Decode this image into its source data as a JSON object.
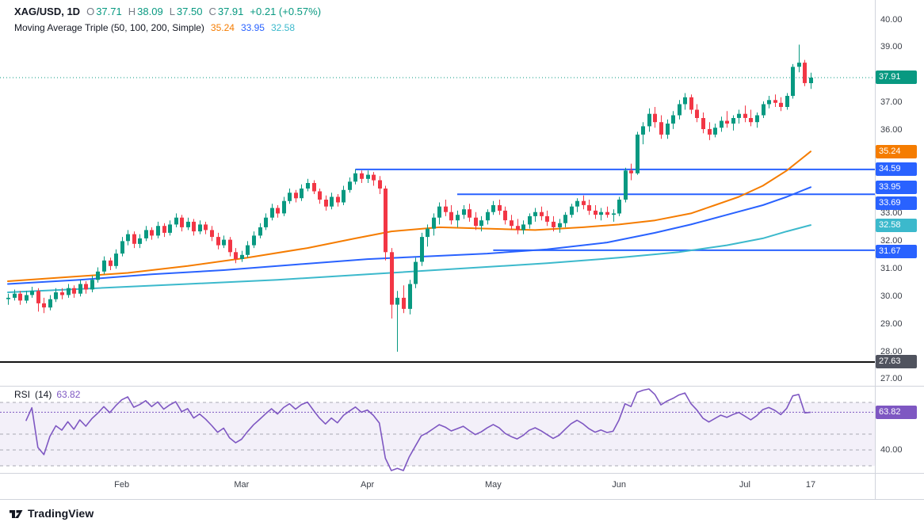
{
  "legend": {
    "symbol": "XAG/USD, 1D",
    "ohlc": {
      "o_label": "O",
      "o": "37.71",
      "h_label": "H",
      "h": "38.09",
      "l_label": "L",
      "l": "37.50",
      "c_label": "C",
      "c": "37.91",
      "change": "+0.21 (+0.57%)"
    },
    "ma": {
      "label": "Moving Average Triple (50, 100, 200, Simple)",
      "ma50": "35.24",
      "ma100": "33.95",
      "ma200": "32.58"
    }
  },
  "rsi_pane": {
    "title": "RSI",
    "params": "(14)",
    "value": "63.82"
  },
  "footer": {
    "brand": "TradingView"
  },
  "colors": {
    "up": "#089981",
    "down": "#F23645",
    "ma50": "#F57C00",
    "ma100": "#2962FF",
    "ma200": "#3CB9CC",
    "level": "#2962FF",
    "dark": "#50535E",
    "black_line": "#131313",
    "rsi": "#7E57C2",
    "axis_text": "#3A3E47",
    "band_dash": "#A8AAB3"
  },
  "price_axis": {
    "ticks": [
      40,
      39,
      37,
      36,
      33,
      32,
      31,
      30,
      29,
      28,
      27
    ],
    "badges": [
      {
        "value": 37.91,
        "key": "up"
      },
      {
        "value": 35.24,
        "key": "ma50"
      },
      {
        "value": 34.59,
        "key": "level"
      },
      {
        "value": 33.95,
        "key": "ma100"
      },
      {
        "value": 33.69,
        "key": "level",
        "shift": 11
      },
      {
        "value": 32.58,
        "key": "ma200"
      },
      {
        "value": 31.67,
        "key": "level",
        "shift": 2
      },
      {
        "value": 27.63,
        "key": "dark"
      }
    ]
  },
  "rsi_axis": {
    "ticks": [
      40
    ],
    "badge": {
      "value": 63.82,
      "key": "rsi"
    }
  },
  "time_axis": {
    "labels": [
      {
        "text": "Feb",
        "index": 19
      },
      {
        "text": "Mar",
        "index": 39
      },
      {
        "text": "Apr",
        "index": 60
      },
      {
        "text": "May",
        "index": 81
      },
      {
        "text": "Jun",
        "index": 102
      },
      {
        "text": "Jul",
        "index": 123
      },
      {
        "text": "17",
        "index": 134
      }
    ]
  },
  "chart_data": {
    "type": "candlestick",
    "symbol": "XAG/USD",
    "interval": "1D",
    "title": "XAG/USD 1D with Moving Average Triple (50,100,200, Simple) and RSI(14)",
    "ylim": [
      26.8,
      40.7
    ],
    "x_range": "early January to July 17",
    "current_price": 37.91,
    "last_bar": {
      "open": 37.71,
      "high": 38.09,
      "low": 37.5,
      "close": 37.91,
      "change": 0.21,
      "change_pct": 0.57
    },
    "ohlc": [
      [
        29.9,
        30.1,
        29.7,
        29.95
      ],
      [
        29.95,
        30.25,
        29.85,
        30.1
      ],
      [
        30.1,
        30.2,
        29.7,
        29.85
      ],
      [
        29.85,
        30.2,
        29.75,
        30.05
      ],
      [
        30.05,
        30.35,
        29.95,
        30.2
      ],
      [
        30.2,
        30.3,
        29.45,
        29.75
      ],
      [
        29.75,
        29.95,
        29.4,
        29.6
      ],
      [
        29.6,
        30.05,
        29.5,
        29.9
      ],
      [
        29.9,
        30.3,
        29.8,
        30.15
      ],
      [
        30.15,
        30.3,
        29.9,
        30.05
      ],
      [
        30.05,
        30.45,
        29.95,
        30.3
      ],
      [
        30.3,
        30.4,
        29.95,
        30.1
      ],
      [
        30.1,
        30.6,
        30.0,
        30.45
      ],
      [
        30.45,
        30.55,
        30.1,
        30.25
      ],
      [
        30.25,
        30.75,
        30.15,
        30.6
      ],
      [
        30.6,
        31.05,
        30.5,
        30.9
      ],
      [
        30.9,
        31.45,
        30.8,
        31.3
      ],
      [
        31.3,
        31.4,
        30.95,
        31.1
      ],
      [
        31.1,
        31.7,
        31.0,
        31.55
      ],
      [
        31.55,
        32.15,
        31.45,
        32.0
      ],
      [
        32.0,
        32.4,
        31.85,
        32.25
      ],
      [
        32.25,
        32.35,
        31.75,
        31.9
      ],
      [
        31.9,
        32.25,
        31.75,
        32.1
      ],
      [
        32.1,
        32.55,
        32.0,
        32.4
      ],
      [
        32.4,
        32.5,
        32.05,
        32.2
      ],
      [
        32.2,
        32.7,
        32.1,
        32.55
      ],
      [
        32.55,
        32.65,
        32.15,
        32.3
      ],
      [
        32.3,
        32.75,
        32.2,
        32.6
      ],
      [
        32.6,
        33.0,
        32.5,
        32.85
      ],
      [
        32.85,
        32.95,
        32.35,
        32.5
      ],
      [
        32.5,
        32.85,
        32.4,
        32.7
      ],
      [
        32.7,
        32.8,
        32.2,
        32.35
      ],
      [
        32.35,
        32.75,
        32.25,
        32.6
      ],
      [
        32.6,
        32.7,
        32.25,
        32.4
      ],
      [
        32.4,
        32.55,
        32.0,
        32.15
      ],
      [
        32.15,
        32.3,
        31.7,
        31.85
      ],
      [
        31.85,
        32.2,
        31.75,
        32.05
      ],
      [
        32.05,
        32.15,
        31.45,
        31.6
      ],
      [
        31.6,
        31.75,
        31.2,
        31.35
      ],
      [
        31.35,
        31.65,
        31.25,
        31.5
      ],
      [
        31.5,
        32.0,
        31.4,
        31.85
      ],
      [
        31.85,
        32.35,
        31.75,
        32.2
      ],
      [
        32.2,
        32.65,
        32.1,
        32.5
      ],
      [
        32.5,
        33.0,
        32.4,
        32.85
      ],
      [
        32.85,
        33.35,
        32.75,
        33.2
      ],
      [
        33.2,
        33.3,
        32.85,
        33.0
      ],
      [
        33.0,
        33.6,
        32.9,
        33.45
      ],
      [
        33.45,
        33.9,
        33.35,
        33.75
      ],
      [
        33.75,
        33.85,
        33.4,
        33.55
      ],
      [
        33.55,
        34.05,
        33.45,
        33.9
      ],
      [
        33.9,
        34.25,
        33.8,
        34.1
      ],
      [
        34.1,
        34.2,
        33.7,
        33.8
      ],
      [
        33.8,
        33.9,
        33.35,
        33.5
      ],
      [
        33.5,
        33.65,
        33.1,
        33.25
      ],
      [
        33.25,
        33.75,
        33.15,
        33.6
      ],
      [
        33.6,
        33.7,
        33.25,
        33.4
      ],
      [
        33.4,
        34.0,
        33.3,
        33.85
      ],
      [
        33.85,
        34.3,
        33.75,
        34.15
      ],
      [
        34.15,
        34.6,
        34.05,
        34.45
      ],
      [
        34.45,
        34.55,
        34.1,
        34.25
      ],
      [
        34.25,
        34.55,
        34.1,
        34.4
      ],
      [
        34.4,
        34.5,
        34.0,
        34.2
      ],
      [
        34.2,
        34.35,
        33.7,
        33.9
      ],
      [
        33.9,
        34.0,
        31.3,
        31.6
      ],
      [
        31.6,
        31.75,
        29.2,
        29.7
      ],
      [
        29.7,
        30.2,
        28.0,
        29.95
      ],
      [
        29.95,
        30.4,
        29.4,
        29.55
      ],
      [
        29.55,
        30.6,
        29.35,
        30.45
      ],
      [
        30.45,
        31.4,
        30.3,
        31.25
      ],
      [
        31.25,
        32.3,
        31.1,
        32.15
      ],
      [
        32.15,
        32.6,
        31.8,
        32.45
      ],
      [
        32.45,
        33.0,
        32.2,
        32.85
      ],
      [
        32.85,
        33.4,
        32.6,
        33.25
      ],
      [
        33.25,
        33.5,
        32.9,
        33.05
      ],
      [
        33.05,
        33.3,
        32.6,
        32.75
      ],
      [
        32.75,
        33.1,
        32.5,
        32.95
      ],
      [
        32.95,
        33.3,
        32.8,
        33.15
      ],
      [
        33.15,
        33.35,
        32.7,
        32.85
      ],
      [
        32.85,
        33.05,
        32.4,
        32.55
      ],
      [
        32.55,
        32.9,
        32.35,
        32.75
      ],
      [
        32.75,
        33.15,
        32.6,
        33.05
      ],
      [
        33.05,
        33.45,
        32.95,
        33.3
      ],
      [
        33.3,
        33.5,
        32.95,
        33.1
      ],
      [
        33.1,
        33.25,
        32.6,
        32.75
      ],
      [
        32.75,
        32.95,
        32.4,
        32.55
      ],
      [
        32.55,
        32.8,
        32.25,
        32.4
      ],
      [
        32.4,
        32.75,
        32.25,
        32.6
      ],
      [
        32.6,
        33.0,
        32.45,
        32.9
      ],
      [
        32.9,
        33.2,
        32.7,
        33.05
      ],
      [
        33.05,
        33.25,
        32.75,
        32.9
      ],
      [
        32.9,
        33.1,
        32.55,
        32.7
      ],
      [
        32.7,
        32.9,
        32.35,
        32.5
      ],
      [
        32.5,
        32.8,
        32.3,
        32.65
      ],
      [
        32.65,
        33.05,
        32.5,
        32.95
      ],
      [
        32.95,
        33.35,
        32.85,
        33.25
      ],
      [
        33.25,
        33.55,
        33.05,
        33.45
      ],
      [
        33.45,
        33.65,
        33.15,
        33.3
      ],
      [
        33.3,
        33.5,
        32.95,
        33.1
      ],
      [
        33.1,
        33.3,
        32.8,
        32.95
      ],
      [
        32.95,
        33.2,
        32.75,
        33.05
      ],
      [
        33.05,
        33.25,
        32.85,
        32.95
      ],
      [
        32.95,
        33.15,
        32.7,
        33.0
      ],
      [
        33.0,
        33.6,
        32.9,
        33.5
      ],
      [
        33.5,
        34.65,
        33.4,
        34.55
      ],
      [
        34.55,
        34.8,
        34.2,
        34.45
      ],
      [
        34.45,
        35.95,
        34.4,
        35.85
      ],
      [
        35.85,
        36.3,
        35.5,
        36.15
      ],
      [
        36.15,
        36.8,
        35.95,
        36.6
      ],
      [
        36.6,
        36.85,
        36.1,
        36.3
      ],
      [
        36.3,
        36.55,
        35.7,
        35.85
      ],
      [
        35.85,
        36.4,
        35.7,
        36.25
      ],
      [
        36.25,
        36.7,
        36.05,
        36.55
      ],
      [
        36.55,
        37.1,
        36.4,
        36.95
      ],
      [
        36.95,
        37.35,
        36.75,
        37.2
      ],
      [
        37.2,
        37.3,
        36.6,
        36.75
      ],
      [
        36.75,
        36.95,
        36.3,
        36.45
      ],
      [
        36.45,
        36.65,
        35.9,
        36.05
      ],
      [
        36.05,
        36.3,
        35.65,
        35.85
      ],
      [
        35.85,
        36.25,
        35.75,
        36.1
      ],
      [
        36.1,
        36.5,
        35.95,
        36.35
      ],
      [
        36.35,
        36.7,
        36.1,
        36.25
      ],
      [
        36.25,
        36.55,
        36.0,
        36.45
      ],
      [
        36.45,
        36.75,
        36.25,
        36.6
      ],
      [
        36.6,
        36.9,
        36.3,
        36.45
      ],
      [
        36.45,
        36.75,
        36.15,
        36.3
      ],
      [
        36.3,
        36.65,
        36.1,
        36.55
      ],
      [
        36.55,
        37.05,
        36.45,
        36.95
      ],
      [
        36.95,
        37.25,
        36.8,
        37.1
      ],
      [
        37.1,
        37.3,
        36.85,
        37.0
      ],
      [
        37.0,
        37.2,
        36.7,
        36.85
      ],
      [
        36.85,
        37.35,
        36.75,
        37.25
      ],
      [
        37.25,
        38.4,
        37.15,
        38.3
      ],
      [
        38.3,
        39.1,
        38.1,
        38.45
      ],
      [
        38.45,
        38.55,
        37.6,
        37.71
      ],
      [
        37.71,
        38.09,
        37.5,
        37.91
      ]
    ],
    "series": {
      "sma50": {
        "name": "SMA 50",
        "last": 35.24,
        "points": [
          [
            0,
            30.55
          ],
          [
            10,
            30.7
          ],
          [
            20,
            30.85
          ],
          [
            30,
            31.1
          ],
          [
            40,
            31.4
          ],
          [
            50,
            31.75
          ],
          [
            58,
            32.1
          ],
          [
            64,
            32.35
          ],
          [
            72,
            32.5
          ],
          [
            80,
            32.45
          ],
          [
            88,
            32.4
          ],
          [
            96,
            32.5
          ],
          [
            102,
            32.6
          ],
          [
            108,
            32.75
          ],
          [
            114,
            33.0
          ],
          [
            118,
            33.3
          ],
          [
            122,
            33.6
          ],
          [
            126,
            34.0
          ],
          [
            130,
            34.55
          ],
          [
            134,
            35.24
          ]
        ]
      },
      "sma100": {
        "name": "SMA 100",
        "last": 33.95,
        "points": [
          [
            0,
            30.45
          ],
          [
            12,
            30.6
          ],
          [
            24,
            30.8
          ],
          [
            36,
            30.95
          ],
          [
            48,
            31.15
          ],
          [
            60,
            31.35
          ],
          [
            70,
            31.45
          ],
          [
            80,
            31.55
          ],
          [
            90,
            31.7
          ],
          [
            100,
            31.95
          ],
          [
            108,
            32.3
          ],
          [
            114,
            32.6
          ],
          [
            120,
            32.95
          ],
          [
            126,
            33.3
          ],
          [
            130,
            33.6
          ],
          [
            134,
            33.95
          ]
        ]
      },
      "sma200": {
        "name": "SMA 200",
        "last": 32.58,
        "points": [
          [
            0,
            30.15
          ],
          [
            15,
            30.3
          ],
          [
            30,
            30.45
          ],
          [
            45,
            30.6
          ],
          [
            60,
            30.8
          ],
          [
            75,
            31.0
          ],
          [
            90,
            31.2
          ],
          [
            102,
            31.4
          ],
          [
            112,
            31.6
          ],
          [
            120,
            31.85
          ],
          [
            126,
            32.1
          ],
          [
            130,
            32.35
          ],
          [
            134,
            32.58
          ]
        ]
      }
    },
    "levels": [
      {
        "value": 34.59,
        "start_index": 58,
        "key": "level"
      },
      {
        "value": 33.69,
        "start_index": 75,
        "key": "level"
      },
      {
        "value": 31.67,
        "start_index": 81,
        "key": "level"
      },
      {
        "value": 27.63,
        "start_index": 0,
        "key": "black_line",
        "full": true
      }
    ],
    "rsi": {
      "period": 14,
      "value": 63.82,
      "band_fill": [
        30,
        70
      ],
      "bands": [
        70,
        50,
        40,
        30
      ]
    }
  }
}
